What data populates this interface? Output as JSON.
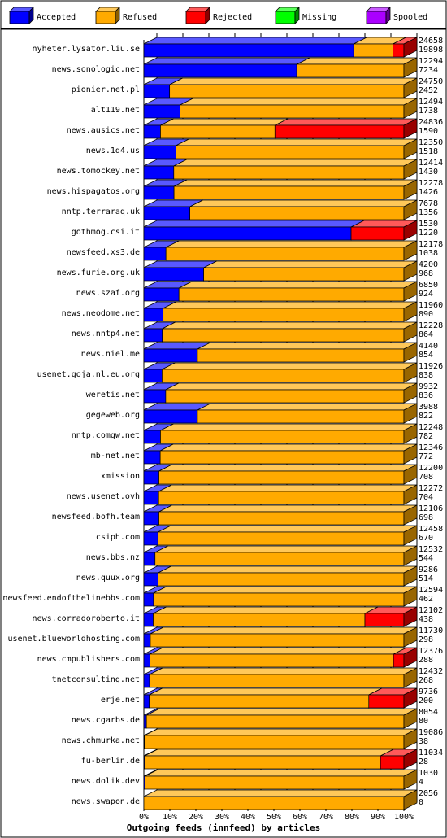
{
  "chart_data": {
    "type": "bar",
    "orientation": "horizontal",
    "stacked": true,
    "percent_scale": true,
    "title": "",
    "xlabel": "Outgoing feeds (innfeed) by articles",
    "ylabel": "",
    "xlim": [
      0,
      100
    ],
    "x_ticks": [
      "0%",
      "10%",
      "20%",
      "30%",
      "40%",
      "50%",
      "60%",
      "70%",
      "80%",
      "90%",
      "100%"
    ],
    "legend_position": "top",
    "grid": true,
    "series": [
      {
        "name": "Accepted",
        "color": "#0000ff"
      },
      {
        "name": "Refused",
        "color": "#ffaa00"
      },
      {
        "name": "Rejected",
        "color": "#ff0000"
      },
      {
        "name": "Missing",
        "color": "#00ff00"
      },
      {
        "name": "Spooled",
        "color": "#aa00ff"
      }
    ],
    "feeds": [
      {
        "name": "nyheter.lysator.liu.se",
        "offered": "24658",
        "accepted": "19898",
        "pct": [
          80.7,
          15.1,
          4.2,
          0,
          0
        ]
      },
      {
        "name": "news.sonologic.net",
        "offered": "12294",
        "accepted": "7234",
        "pct": [
          58.8,
          41.2,
          0,
          0,
          0
        ]
      },
      {
        "name": "pionier.net.pl",
        "offered": "24750",
        "accepted": "2452",
        "pct": [
          9.9,
          90.1,
          0,
          0,
          0
        ]
      },
      {
        "name": "alt119.net",
        "offered": "12494",
        "accepted": "1738",
        "pct": [
          13.9,
          86.1,
          0,
          0,
          0
        ]
      },
      {
        "name": "news.ausics.net",
        "offered": "24836",
        "accepted": "1590",
        "pct": [
          6.4,
          44.0,
          49.6,
          0,
          0
        ]
      },
      {
        "name": "news.1d4.us",
        "offered": "12350",
        "accepted": "1518",
        "pct": [
          12.3,
          87.7,
          0,
          0,
          0
        ]
      },
      {
        "name": "news.tomockey.net",
        "offered": "12414",
        "accepted": "1430",
        "pct": [
          11.5,
          88.5,
          0,
          0,
          0
        ]
      },
      {
        "name": "news.hispagatos.org",
        "offered": "12278",
        "accepted": "1426",
        "pct": [
          11.6,
          88.4,
          0,
          0,
          0
        ]
      },
      {
        "name": "nntp.terraraq.uk",
        "offered": "7678",
        "accepted": "1356",
        "pct": [
          17.7,
          82.3,
          0,
          0,
          0
        ]
      },
      {
        "name": "gothmog.csi.it",
        "offered": "1530",
        "accepted": "1220",
        "pct": [
          79.7,
          0,
          20.3,
          0,
          0
        ]
      },
      {
        "name": "newsfeed.xs3.de",
        "offered": "12178",
        "accepted": "1038",
        "pct": [
          8.5,
          91.5,
          0,
          0,
          0
        ]
      },
      {
        "name": "news.furie.org.uk",
        "offered": "4200",
        "accepted": "968",
        "pct": [
          23.0,
          77.0,
          0,
          0,
          0
        ]
      },
      {
        "name": "news.szaf.org",
        "offered": "6850",
        "accepted": "924",
        "pct": [
          13.5,
          86.5,
          0,
          0,
          0
        ]
      },
      {
        "name": "news.neodome.net",
        "offered": "11960",
        "accepted": "890",
        "pct": [
          7.4,
          92.6,
          0,
          0,
          0
        ]
      },
      {
        "name": "news.nntp4.net",
        "offered": "12228",
        "accepted": "864",
        "pct": [
          7.1,
          92.9,
          0,
          0,
          0
        ]
      },
      {
        "name": "news.niel.me",
        "offered": "4140",
        "accepted": "854",
        "pct": [
          20.6,
          79.4,
          0,
          0,
          0
        ]
      },
      {
        "name": "usenet.goja.nl.eu.org",
        "offered": "11926",
        "accepted": "838",
        "pct": [
          7.0,
          93.0,
          0,
          0,
          0
        ]
      },
      {
        "name": "weretis.net",
        "offered": "9932",
        "accepted": "836",
        "pct": [
          8.4,
          91.6,
          0,
          0,
          0
        ]
      },
      {
        "name": "gegeweb.org",
        "offered": "3988",
        "accepted": "822",
        "pct": [
          20.6,
          79.4,
          0,
          0,
          0
        ]
      },
      {
        "name": "nntp.comgw.net",
        "offered": "12248",
        "accepted": "782",
        "pct": [
          6.4,
          93.6,
          0,
          0,
          0
        ]
      },
      {
        "name": "mb-net.net",
        "offered": "12346",
        "accepted": "772",
        "pct": [
          6.3,
          93.7,
          0,
          0,
          0
        ]
      },
      {
        "name": "xmission",
        "offered": "12200",
        "accepted": "708",
        "pct": [
          5.8,
          94.2,
          0,
          0,
          0
        ]
      },
      {
        "name": "news.usenet.ovh",
        "offered": "12272",
        "accepted": "704",
        "pct": [
          5.7,
          94.3,
          0,
          0,
          0
        ]
      },
      {
        "name": "newsfeed.bofh.team",
        "offered": "12106",
        "accepted": "698",
        "pct": [
          5.8,
          94.2,
          0,
          0,
          0
        ]
      },
      {
        "name": "csiph.com",
        "offered": "12458",
        "accepted": "670",
        "pct": [
          5.4,
          94.6,
          0,
          0,
          0
        ]
      },
      {
        "name": "news.bbs.nz",
        "offered": "12532",
        "accepted": "544",
        "pct": [
          4.3,
          95.7,
          0,
          0,
          0
        ]
      },
      {
        "name": "news.quux.org",
        "offered": "9286",
        "accepted": "514",
        "pct": [
          5.5,
          94.5,
          0,
          0,
          0
        ]
      },
      {
        "name": "newsfeed.endofthelinebbs.com",
        "offered": "12594",
        "accepted": "462",
        "pct": [
          3.7,
          96.3,
          0,
          0,
          0
        ]
      },
      {
        "name": "news.corradoroberto.it",
        "offered": "12102",
        "accepted": "438",
        "pct": [
          3.6,
          81.4,
          15.0,
          0,
          0
        ]
      },
      {
        "name": "usenet.blueworldhosting.com",
        "offered": "11730",
        "accepted": "298",
        "pct": [
          2.5,
          97.5,
          0,
          0,
          0
        ]
      },
      {
        "name": "news.cmpublishers.com",
        "offered": "12376",
        "accepted": "288",
        "pct": [
          2.3,
          93.7,
          4.0,
          0,
          0
        ]
      },
      {
        "name": "tnetconsulting.net",
        "offered": "12432",
        "accepted": "268",
        "pct": [
          2.2,
          97.8,
          0,
          0,
          0
        ]
      },
      {
        "name": "erje.net",
        "offered": "9736",
        "accepted": "200",
        "pct": [
          2.1,
          84.4,
          13.5,
          0,
          0
        ]
      },
      {
        "name": "news.cgarbs.de",
        "offered": "8054",
        "accepted": "80",
        "pct": [
          1.0,
          99.0,
          0,
          0,
          0
        ]
      },
      {
        "name": "news.chmurka.net",
        "offered": "19086",
        "accepted": "38",
        "pct": [
          0.2,
          99.8,
          0,
          0,
          0
        ]
      },
      {
        "name": "fu-berlin.de",
        "offered": "11034",
        "accepted": "28",
        "pct": [
          0.3,
          90.7,
          9.0,
          0,
          0
        ]
      },
      {
        "name": "news.dolik.dev",
        "offered": "1030",
        "accepted": "4",
        "pct": [
          0.4,
          99.6,
          0,
          0,
          0
        ]
      },
      {
        "name": "news.swapon.de",
        "offered": "2056",
        "accepted": "0",
        "pct": [
          0,
          100,
          0,
          0,
          0
        ]
      }
    ]
  }
}
